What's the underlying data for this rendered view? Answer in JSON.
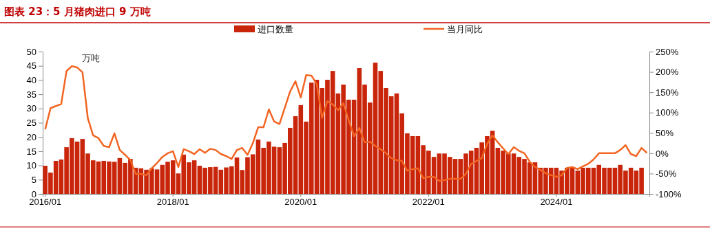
{
  "chart_data": {
    "type": "bar",
    "title": "图表 23：5 月猪肉进口 9 万吨",
    "ylabel": "万吨",
    "categories": [
      "2016/01",
      null,
      null,
      null,
      null,
      null,
      null,
      null,
      null,
      null,
      null,
      null,
      null,
      null,
      null,
      null,
      null,
      null,
      null,
      null,
      null,
      null,
      null,
      null,
      "2018/01",
      null,
      null,
      null,
      null,
      null,
      null,
      null,
      null,
      null,
      null,
      null,
      null,
      null,
      null,
      null,
      null,
      null,
      null,
      null,
      null,
      null,
      null,
      null,
      "2020/01",
      null,
      null,
      null,
      null,
      null,
      null,
      null,
      null,
      null,
      null,
      null,
      null,
      null,
      null,
      null,
      null,
      null,
      null,
      null,
      null,
      null,
      null,
      null,
      "2022/01",
      null,
      null,
      null,
      null,
      null,
      null,
      null,
      null,
      null,
      null,
      null,
      null,
      null,
      null,
      null,
      null,
      null,
      null,
      null,
      null,
      null,
      null,
      null,
      "2024/01",
      null,
      null,
      null,
      null,
      null,
      null,
      null,
      null,
      null,
      null,
      null,
      null,
      null,
      null,
      null,
      null,
      null
    ],
    "series": [
      {
        "name": "进口数量",
        "color": "#c8250a",
        "values": [
          9.9,
          7.5,
          11.6,
          12.1,
          16.4,
          19.6,
          18.4,
          19.3,
          14.2,
          11.8,
          11.4,
          11.6,
          11.4,
          11.3,
          12.6,
          10.9,
          12.3,
          9.2,
          9.0,
          8.5,
          9.0,
          8.6,
          10.2,
          11.3,
          11.8,
          7.2,
          13.8,
          11.1,
          11.8,
          9.9,
          9.2,
          9.4,
          9.5,
          8.5,
          9.3,
          9.7,
          12.8,
          8.4,
          12.9,
          13.9,
          19.1,
          16.2,
          18.4,
          16.6,
          16.4,
          17.9,
          23.2,
          27.3,
          31.2,
          25.4,
          39.1,
          40.1,
          37.2,
          40.1,
          43.2,
          35.3,
          38.4,
          33.1,
          33.1,
          44.2,
          38.4,
          32.1,
          46.1,
          43.2,
          37.2,
          34.3,
          35.3,
          28.3,
          21.3,
          20.3,
          20.3,
          17.1,
          15.2,
          13.0,
          14.2,
          14.2,
          13.0,
          12.3,
          12.3,
          14.2,
          15.2,
          16.2,
          18.1,
          20.3,
          22.2,
          16.2,
          15.2,
          14.2,
          14.2,
          13.0,
          12.3,
          11.1,
          11.1,
          9.2,
          9.2,
          9.2,
          9.2,
          8.2,
          9.2,
          9.2,
          8.2,
          9.2,
          9.2,
          9.2,
          10.2,
          9.2,
          9.2,
          9.2,
          10.2,
          8.2,
          9.2,
          8.2,
          9.2,
          null
        ]
      },
      {
        "name": "当月同比",
        "type": "line",
        "axis": "y2",
        "color": "#f26522",
        "values": [
          59,
          111,
          116,
          121,
          202,
          214,
          211,
          199,
          86,
          44,
          37,
          18,
          15,
          49,
          8,
          -4,
          -17,
          -51,
          -51,
          -54,
          -37,
          -24,
          -9,
          0,
          5,
          -34,
          10,
          5,
          -2,
          10,
          1,
          11,
          8,
          -2,
          -7,
          -14,
          8,
          13,
          -4,
          25,
          64,
          64,
          108,
          78,
          72,
          112,
          152,
          177,
          137,
          192,
          191,
          170,
          87,
          128,
          120,
          106,
          123,
          81,
          42,
          62,
          27,
          28,
          18,
          10,
          0,
          -12,
          -17,
          -19,
          -43,
          -39,
          -37,
          -61,
          -58,
          -58,
          -68,
          -66,
          -63,
          -63,
          -63,
          -51,
          -26,
          -19,
          -12,
          23,
          44,
          27,
          12,
          -2,
          15,
          6,
          0,
          -21,
          -34,
          -41,
          -49,
          -54,
          -58,
          -54,
          -36,
          -34,
          -39,
          -32,
          -26,
          -15,
          0,
          0,
          0,
          0,
          8,
          20,
          -2,
          -7,
          13,
          1
        ]
      }
    ],
    "ylim": [
      0,
      50
    ],
    "yticks": [
      0,
      5,
      10,
      15,
      20,
      25,
      30,
      35,
      40,
      45,
      50
    ],
    "y2lim": [
      -100,
      250
    ],
    "y2ticks": [
      {
        "value": -100,
        "label": "-100%"
      },
      {
        "value": -50,
        "label": "-50%"
      },
      {
        "value": 0,
        "label": "0%"
      },
      {
        "value": 50,
        "label": "50%"
      },
      {
        "value": 100,
        "label": "100%"
      },
      {
        "value": 150,
        "label": "150%"
      },
      {
        "value": 200,
        "label": "200%"
      },
      {
        "value": 250,
        "label": "250%"
      }
    ],
    "legend": "top",
    "grid": false
  }
}
